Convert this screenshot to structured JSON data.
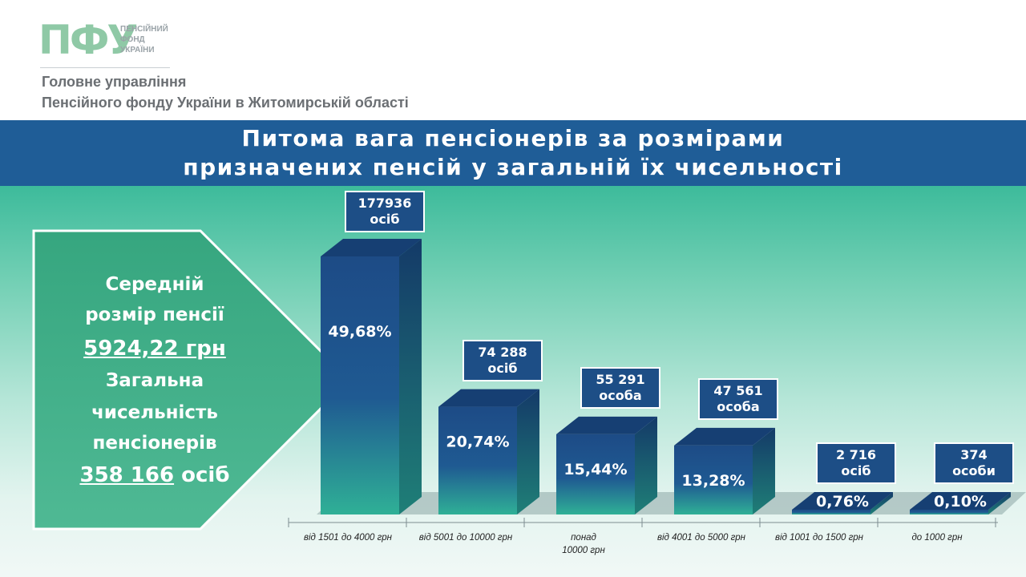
{
  "header": {
    "logo_mark": "ПФУ",
    "logo_lines": [
      "ПЕНСІЙНИЙ",
      "ФОНД",
      "УКРАЇНИ"
    ],
    "org_line1": "Головне управління",
    "org_line2": "Пенсійного фонду України в Житомирській області"
  },
  "title": {
    "line1": "Питома вага пенсіонерів за розмірами",
    "line2": "призначених пенсій у загальній їх чисельності"
  },
  "summary": {
    "avg_label1": "Середній",
    "avg_label2": "розмір пенсії",
    "avg_value": "5924,22 грн",
    "total_label1": "Загальна",
    "total_label2": "чисельність",
    "total_label3": "пенсіонерів",
    "total_value": "358 166",
    "total_unit": " осіб"
  },
  "colors": {
    "accent": "#1f5d97",
    "bar_top": "#1d4b86",
    "bar_bottom": "#2fb096",
    "arrow": "#3aa982"
  },
  "chart_data": {
    "type": "bar",
    "categories": [
      "від 1501 до 4000 грн",
      "від 5001 до 10000 грн",
      "понад 10000 грн",
      "від 4001 до 5000 грн",
      "від 1001 до 1500 грн",
      "до 1000 грн"
    ],
    "category_lines": [
      [
        "від 1501 до 4000 грн"
      ],
      [
        "від 5001 до 10000 грн"
      ],
      [
        "понад",
        "10000 грн"
      ],
      [
        "від 4001 до 5000 грн"
      ],
      [
        "від 1001 до 1500 грн"
      ],
      [
        "до 1000 грн"
      ]
    ],
    "values": [
      49.68,
      20.74,
      15.44,
      13.28,
      0.76,
      0.1
    ],
    "value_labels": [
      "49,68%",
      "20,74%",
      "15,44%",
      "13,28%",
      "0,76%",
      "0,10%"
    ],
    "count_labels": [
      [
        "177936",
        "осіб"
      ],
      [
        "74 288",
        "осіб"
      ],
      [
        "55 291",
        "особа"
      ],
      [
        "47 561",
        "особа"
      ],
      [
        "2 716",
        "осіб"
      ],
      [
        "374",
        "особи"
      ]
    ],
    "unit": "%"
  }
}
